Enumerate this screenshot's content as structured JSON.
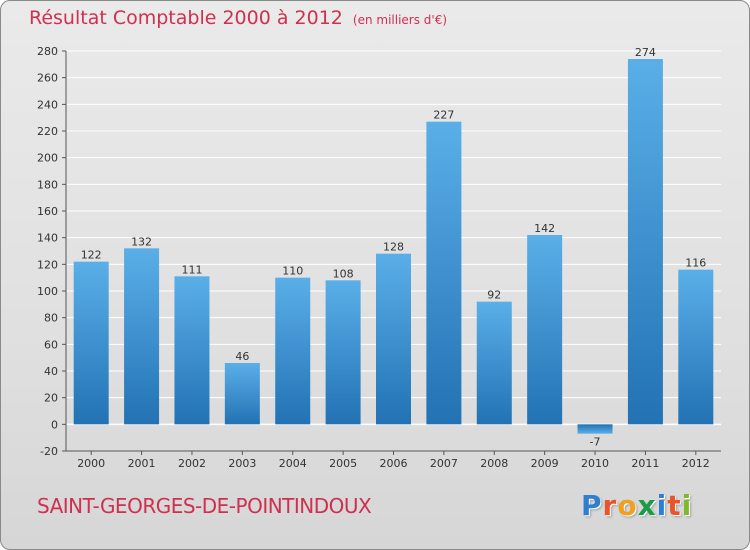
{
  "title": {
    "main": "Résultat Comptable 2000 à 2012",
    "sub": "(en milliers d'€)"
  },
  "commune": "SAINT-GEORGES-DE-POINTINDOUX",
  "logo": {
    "letters": [
      "P",
      "r",
      "o",
      "x",
      "i",
      "t",
      "i"
    ],
    "colors": [
      "#2f7fd0",
      "#e8552b",
      "#f0a020",
      "#1b9a4a",
      "#2f7fd0",
      "#e8552b",
      "#7fb82a"
    ]
  },
  "colors": {
    "bar_top": "#5aafe8",
    "bar_bottom": "#2272b4",
    "grid": "#ffffff",
    "title": "#d03050"
  },
  "chart_data": {
    "type": "bar",
    "title": "Résultat Comptable 2000 à 2012",
    "ylabel": "en milliers d'€",
    "categories": [
      "2000",
      "2001",
      "2002",
      "2003",
      "2004",
      "2005",
      "2006",
      "2007",
      "2008",
      "2009",
      "2010",
      "2011",
      "2012"
    ],
    "values": [
      122,
      132,
      111,
      46,
      110,
      108,
      128,
      227,
      92,
      142,
      -7,
      274,
      116
    ],
    "ylim": [
      -20,
      280
    ],
    "yticks": [
      -20,
      0,
      20,
      40,
      60,
      80,
      100,
      120,
      140,
      160,
      180,
      200,
      220,
      240,
      260,
      280
    ]
  }
}
